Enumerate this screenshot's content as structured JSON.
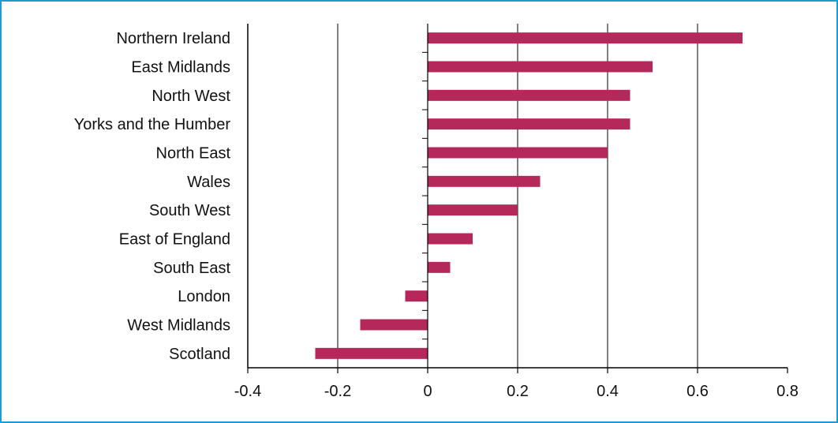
{
  "chart_data": {
    "type": "bar",
    "orientation": "horizontal",
    "categories": [
      "Northern Ireland",
      "East Midlands",
      "North West",
      "Yorks and the Humber",
      "North East",
      "Wales",
      "South West",
      "East of England",
      "South East",
      "London",
      "West Midlands",
      "Scotland"
    ],
    "series": [
      {
        "values": [
          0.7,
          0.5,
          0.45,
          0.45,
          0.4,
          0.25,
          0.2,
          0.1,
          0.05,
          -0.05,
          -0.15,
          -0.25
        ]
      }
    ],
    "xlim": [
      -0.4,
      0.8
    ],
    "x_ticks": [
      -0.4,
      -0.2,
      0,
      0.2,
      0.4,
      0.6,
      0.8
    ],
    "x_tick_labels": [
      "-0.4",
      "-0.2",
      "0",
      "0.2",
      "0.4",
      "0.6",
      "0.8"
    ],
    "grid": "vertical",
    "bar_color": "#b5285a",
    "frame_color": "#1e9bd0"
  }
}
